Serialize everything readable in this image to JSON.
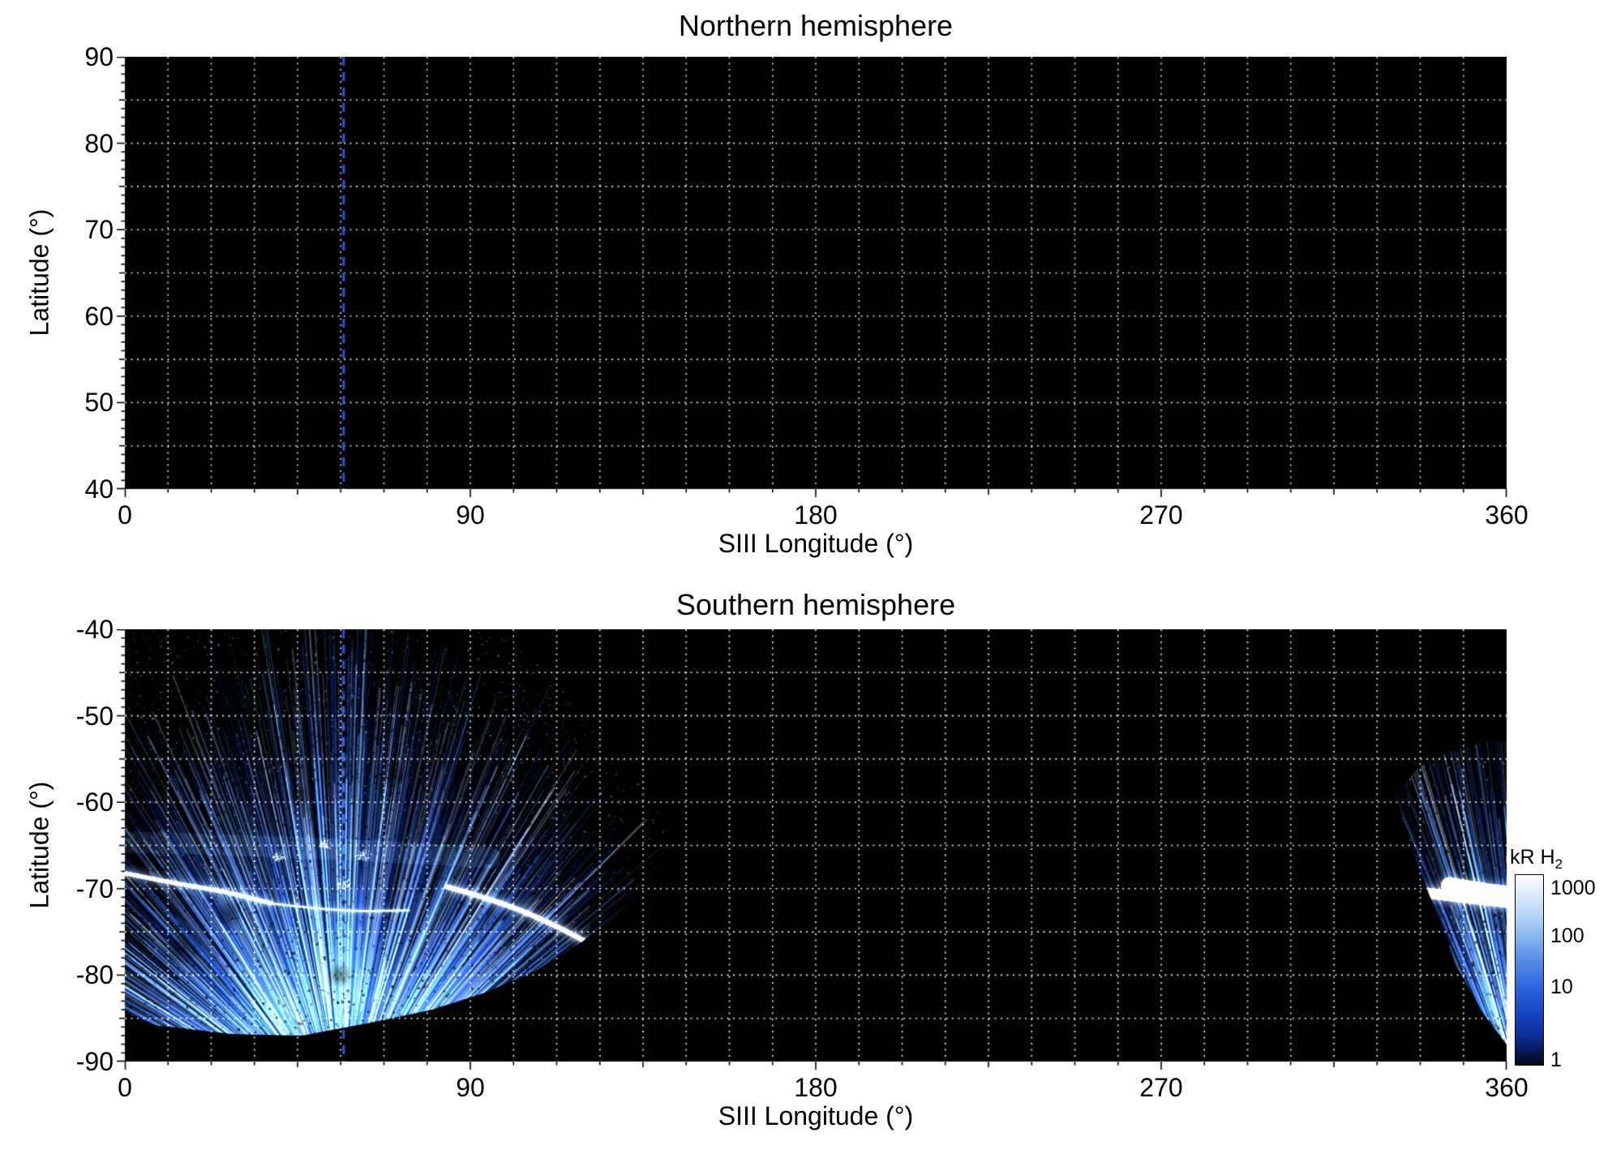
{
  "page": {
    "background": "#ffffff",
    "text_color": "#000000"
  },
  "colorbar": {
    "label": "kR H",
    "label_sub": "2",
    "scale": "log",
    "ticks": [
      "1000",
      "100",
      "10",
      "1"
    ],
    "tick_values": [
      1000,
      100,
      10,
      1
    ],
    "gradient": [
      "#ffffff",
      "#dcebfb",
      "#a8ccf4",
      "#5e97e8",
      "#2e6ade",
      "#1747c2",
      "#0d2f9a",
      "#061a55",
      "#010618"
    ]
  },
  "chart_data": [
    {
      "id": "north",
      "type": "heatmap",
      "title": "Northern hemisphere",
      "xlabel": "SIII Longitude (°)",
      "ylabel": "Latitude (°)",
      "xlim": [
        0,
        360
      ],
      "ylim": [
        40,
        90
      ],
      "xticks": [
        "0",
        "90",
        "180",
        "270",
        "360"
      ],
      "yticks": [
        "90",
        "80",
        "70",
        "60",
        "50",
        "40"
      ],
      "grid": {
        "lon_step_deg": 11.25,
        "lat_step_deg": 5,
        "style": "dotted",
        "color": "#ffffff"
      },
      "background": "#000000",
      "reference_line": {
        "type": "vertical-dashed",
        "longitude_deg": 57,
        "color": "#2b55e2"
      },
      "emission": null,
      "note": "no H2 emission data shown; map field entirely black"
    },
    {
      "id": "south",
      "type": "heatmap",
      "title": "Southern hemisphere",
      "xlabel": "SIII Longitude (°)",
      "ylabel": "Latitude (°)",
      "xlim": [
        0,
        360
      ],
      "ylim": [
        -90,
        -40
      ],
      "xticks": [
        "0",
        "90",
        "180",
        "270",
        "360"
      ],
      "yticks": [
        "-40",
        "-50",
        "-60",
        "-70",
        "-80",
        "-90"
      ],
      "grid": {
        "lon_step_deg": 11.25,
        "lat_step_deg": 5,
        "style": "dotted",
        "color": "#ffffff"
      },
      "background": "#000000",
      "reference_line": {
        "type": "vertical-dashed",
        "longitude_deg": 57,
        "color": "#2b55e2"
      },
      "emission": {
        "units": "kR H2",
        "intensity_range": [
          1,
          1000
        ],
        "description": "Patchy striated H2 auroral emission converging toward the south pole; sparse speckle above -55°, dense blue streaks between -55° and -85°, bright white auroral oval arcs near -70° latitude (lon 0-38 and lon 84-131) and a bright patch near lon 337-360 at -71°.",
        "palette": [
          "#071a5e",
          "#0c2c92",
          "#1646c0",
          "#2c67dd",
          "#5a93e8",
          "#8fc0f2",
          "#c6e2fa"
        ],
        "coverage_polygons": [
          [
            [
              0,
              -40.5
            ],
            [
              10,
              -40
            ],
            [
              98,
              -40
            ],
            [
              110,
              -45
            ],
            [
              122,
              -51
            ],
            [
              133,
              -56
            ],
            [
              140,
              -61
            ],
            [
              141,
              -66
            ],
            [
              135,
              -70
            ],
            [
              127,
              -73.5
            ],
            [
              118,
              -76.5
            ],
            [
              107,
              -79.5
            ],
            [
              94,
              -82
            ],
            [
              80,
              -84
            ],
            [
              64,
              -85.5
            ],
            [
              46,
              -87
            ],
            [
              28,
              -86.8
            ],
            [
              12,
              -86
            ],
            [
              0,
              -85.5
            ]
          ],
          [
            [
              331,
              -59
            ],
            [
              337,
              -56
            ],
            [
              346,
              -54
            ],
            [
              355,
              -53
            ],
            [
              360,
              -53
            ],
            [
              360,
              -88
            ],
            [
              354,
              -84.5
            ],
            [
              347,
              -79
            ],
            [
              341,
              -72
            ],
            [
              335,
              -65
            ]
          ]
        ],
        "streak_fields": [
          {
            "center": [
              57,
              -97
            ],
            "count": 2400,
            "angle_range": [
              -1.1,
              1.1
            ],
            "max_len": 460
          },
          {
            "center": [
              367,
              -98
            ],
            "count": 520,
            "angle_range": [
              -0.55,
              0.15
            ],
            "max_len": 420
          }
        ],
        "speckle_regions": [
          {
            "lon": [
              0,
              141
            ],
            "lat": [
              -87,
              -40
            ],
            "dark": 2600,
            "light": 1600
          },
          {
            "lon": [
              0,
              120
            ],
            "lat": [
              -58,
              -40
            ],
            "dark": 1500,
            "light": 300
          },
          {
            "lon": [
              331,
              360
            ],
            "lat": [
              -88,
              -53
            ],
            "dark": 520,
            "light": 340
          }
        ],
        "dark_blobs": [
          [
            14,
            -77,
            26
          ],
          [
            27,
            -73,
            18
          ],
          [
            8,
            -57,
            16
          ],
          [
            45,
            -59,
            15
          ],
          [
            70,
            -57,
            18
          ],
          [
            56,
            -80,
            16
          ],
          [
            90,
            -64,
            13
          ],
          [
            33,
            -50,
            20
          ],
          [
            100,
            -52,
            16
          ],
          [
            5,
            -47,
            14
          ]
        ],
        "band": {
          "pts": [
            [
              0,
              -64.6
            ],
            [
              48,
              -65.2
            ],
            [
              95,
              -66.4
            ]
          ],
          "width": 26,
          "alpha": 0.13
        },
        "bright_knots": [
          [
            52,
            -64.8
          ],
          [
            62,
            -66
          ],
          [
            40,
            -66.3
          ],
          [
            57,
            -69.5
          ]
        ],
        "bright_arcs": [
          {
            "pts": [
              [
                0,
                -68.2
              ],
              [
                13,
                -69.4
              ],
              [
                26,
                -70.3
              ],
              [
                38,
                -71.7
              ]
            ],
            "width": 5,
            "alpha": 0.95
          },
          {
            "pts": [
              [
                38,
                -71.7
              ],
              [
                57,
                -72.7
              ],
              [
                74,
                -72.5
              ]
            ],
            "width": 3,
            "alpha": 0.4
          },
          {
            "pts": [
              [
                84,
                -69.8
              ],
              [
                97,
                -71.4
              ],
              [
                111,
                -74.0
              ],
              [
                123,
                -76.8
              ],
              [
                131,
                -79.5
              ]
            ],
            "width": 6,
            "alpha": 1
          },
          {
            "pts": [
              [
                337,
                -70.4
              ],
              [
                348,
                -71.0
              ],
              [
                360,
                -71.6
              ]
            ],
            "width": 13,
            "alpha": 0.95
          },
          {
            "pts": [
              [
                345,
                -69.6
              ],
              [
                353,
                -70.2
              ],
              [
                360,
                -70.6
              ]
            ],
            "width": 20,
            "alpha": 0.75
          }
        ]
      }
    }
  ]
}
